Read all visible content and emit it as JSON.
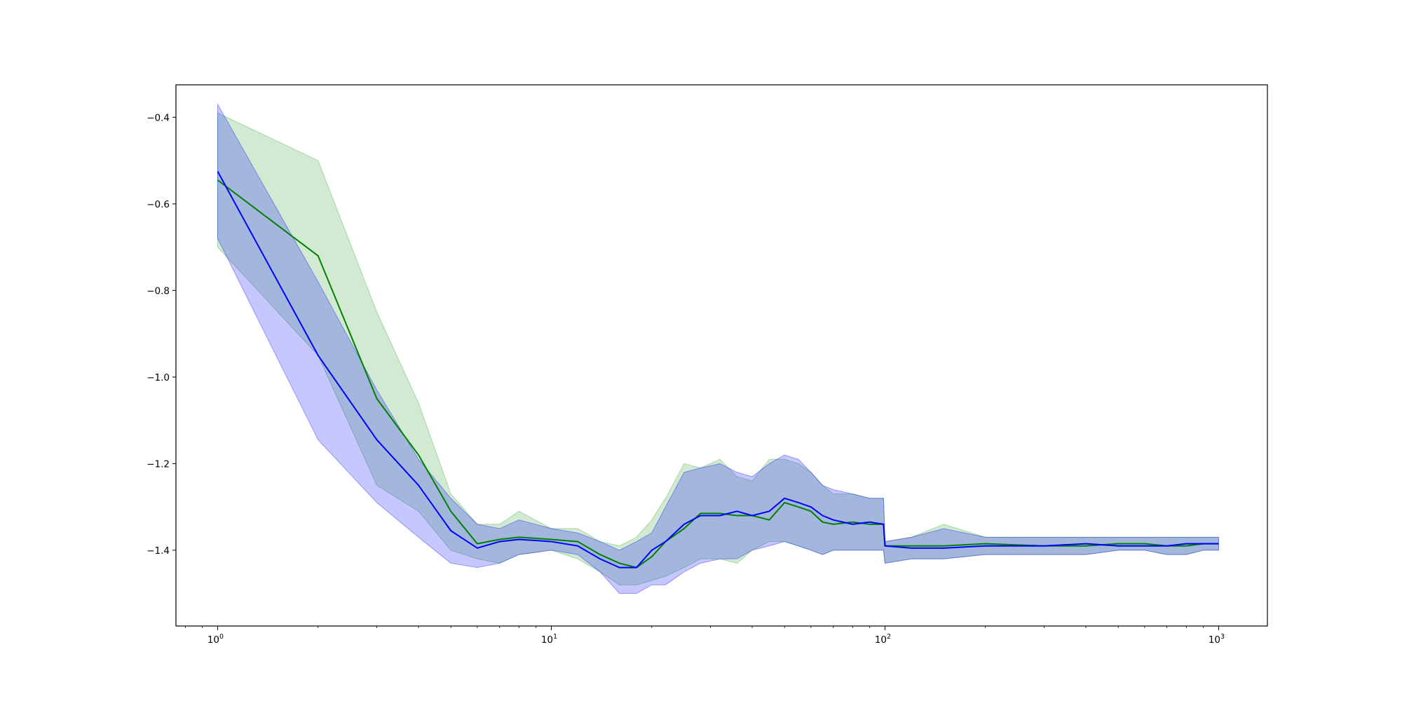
{
  "chart_data": {
    "type": "line",
    "title": "",
    "xlabel": "",
    "ylabel": "",
    "xscale": "log",
    "xlim": [
      0.75,
      1400
    ],
    "ylim": [
      -1.575,
      -0.325
    ],
    "grid": false,
    "legend": "none",
    "x_ticks": [
      {
        "base": "10",
        "exp": "0",
        "value": 1
      },
      {
        "base": "10",
        "exp": "1",
        "value": 10
      },
      {
        "base": "10",
        "exp": "2",
        "value": 100
      },
      {
        "base": "10",
        "exp": "3",
        "value": 1000
      }
    ],
    "y_ticks": [
      {
        "label": "−0.4",
        "value": -0.4
      },
      {
        "label": "−0.6",
        "value": -0.6
      },
      {
        "label": "−0.8",
        "value": -0.8
      },
      {
        "label": "−1.0",
        "value": -1.0
      },
      {
        "label": "−1.2",
        "value": -1.2
      },
      {
        "label": "−1.4",
        "value": -1.4
      }
    ],
    "series": [
      {
        "color": "#008000",
        "band_color": "#2ca02c",
        "x": [
          1,
          2,
          3,
          4,
          5,
          6,
          7,
          8,
          10,
          12,
          14,
          16,
          18,
          20,
          22,
          25,
          28,
          32,
          36,
          40,
          45,
          50,
          55,
          60,
          65,
          70,
          80,
          90,
          99,
          100,
          120,
          150,
          200,
          300,
          400,
          500,
          600,
          700,
          800,
          900,
          1000
        ],
        "y": [
          -0.545,
          -0.72,
          -1.05,
          -1.18,
          -1.31,
          -1.385,
          -1.375,
          -1.37,
          -1.375,
          -1.38,
          -1.41,
          -1.43,
          -1.44,
          -1.415,
          -1.38,
          -1.35,
          -1.315,
          -1.315,
          -1.32,
          -1.32,
          -1.33,
          -1.29,
          -1.3,
          -1.31,
          -1.335,
          -1.34,
          -1.335,
          -1.34,
          -1.34,
          -1.39,
          -1.39,
          -1.39,
          -1.385,
          -1.39,
          -1.39,
          -1.385,
          -1.385,
          -1.39,
          -1.39,
          -1.385,
          -1.385
        ],
        "lower": [
          -0.7,
          -0.95,
          -1.25,
          -1.31,
          -1.4,
          -1.42,
          -1.43,
          -1.41,
          -1.4,
          -1.42,
          -1.45,
          -1.48,
          -1.48,
          -1.47,
          -1.46,
          -1.44,
          -1.42,
          -1.42,
          -1.43,
          -1.4,
          -1.38,
          -1.38,
          -1.39,
          -1.4,
          -1.41,
          -1.4,
          -1.4,
          -1.4,
          -1.4,
          -1.43,
          -1.42,
          -1.42,
          -1.41,
          -1.41,
          -1.41,
          -1.4,
          -1.4,
          -1.41,
          -1.41,
          -1.4,
          -1.4
        ],
        "upper": [
          -0.39,
          -0.5,
          -0.85,
          -1.06,
          -1.27,
          -1.34,
          -1.34,
          -1.31,
          -1.35,
          -1.35,
          -1.38,
          -1.39,
          -1.37,
          -1.33,
          -1.28,
          -1.2,
          -1.21,
          -1.19,
          -1.23,
          -1.24,
          -1.19,
          -1.19,
          -1.2,
          -1.22,
          -1.25,
          -1.27,
          -1.27,
          -1.28,
          -1.28,
          -1.38,
          -1.37,
          -1.34,
          -1.37,
          -1.37,
          -1.37,
          -1.37,
          -1.37,
          -1.37,
          -1.37,
          -1.37,
          -1.37
        ]
      },
      {
        "color": "#0000ff",
        "band_color": "#0000ff",
        "x": [
          1,
          2,
          3,
          4,
          5,
          6,
          7,
          8,
          10,
          12,
          14,
          16,
          18,
          20,
          22,
          25,
          28,
          32,
          36,
          40,
          45,
          50,
          55,
          60,
          65,
          70,
          80,
          90,
          99,
          100,
          120,
          150,
          200,
          300,
          400,
          500,
          600,
          700,
          800,
          900,
          1000
        ],
        "y": [
          -0.525,
          -0.95,
          -1.145,
          -1.25,
          -1.355,
          -1.395,
          -1.38,
          -1.375,
          -1.38,
          -1.39,
          -1.42,
          -1.44,
          -1.44,
          -1.4,
          -1.38,
          -1.34,
          -1.32,
          -1.32,
          -1.31,
          -1.32,
          -1.31,
          -1.28,
          -1.29,
          -1.3,
          -1.32,
          -1.33,
          -1.34,
          -1.335,
          -1.34,
          -1.39,
          -1.395,
          -1.395,
          -1.39,
          -1.39,
          -1.385,
          -1.39,
          -1.39,
          -1.39,
          -1.385,
          -1.385,
          -1.385
        ],
        "lower": [
          -0.68,
          -1.145,
          -1.29,
          -1.37,
          -1.43,
          -1.44,
          -1.43,
          -1.41,
          -1.4,
          -1.41,
          -1.45,
          -1.5,
          -1.5,
          -1.48,
          -1.48,
          -1.45,
          -1.43,
          -1.42,
          -1.42,
          -1.4,
          -1.39,
          -1.38,
          -1.39,
          -1.4,
          -1.41,
          -1.4,
          -1.4,
          -1.4,
          -1.4,
          -1.43,
          -1.42,
          -1.42,
          -1.41,
          -1.41,
          -1.41,
          -1.4,
          -1.4,
          -1.41,
          -1.41,
          -1.4,
          -1.4
        ],
        "upper": [
          -0.37,
          -0.78,
          -1.03,
          -1.19,
          -1.28,
          -1.34,
          -1.35,
          -1.33,
          -1.35,
          -1.36,
          -1.38,
          -1.4,
          -1.38,
          -1.36,
          -1.3,
          -1.22,
          -1.21,
          -1.2,
          -1.22,
          -1.23,
          -1.2,
          -1.18,
          -1.19,
          -1.22,
          -1.25,
          -1.26,
          -1.27,
          -1.28,
          -1.28,
          -1.38,
          -1.37,
          -1.35,
          -1.37,
          -1.37,
          -1.37,
          -1.37,
          -1.37,
          -1.37,
          -1.37,
          -1.37,
          -1.37
        ]
      }
    ]
  }
}
